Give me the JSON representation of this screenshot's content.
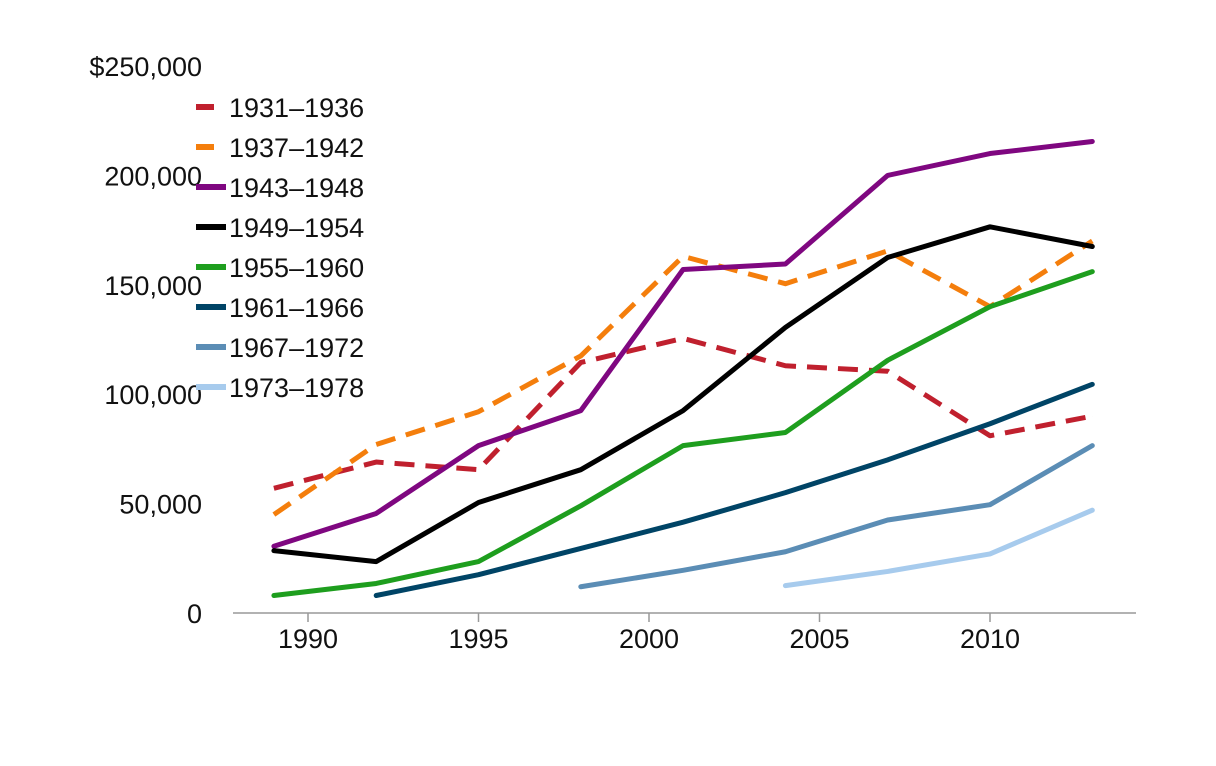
{
  "chart_data": {
    "type": "line",
    "title": "",
    "xlabel": "",
    "ylabel": "",
    "xlim": [
      1988,
      2014.5
    ],
    "ylim": [
      0,
      250000
    ],
    "grid": false,
    "legend_placement": "top-left",
    "x_ticks": [
      1990,
      1995,
      2000,
      2005,
      2010
    ],
    "x_tick_labels": [
      "1990",
      "1995",
      "2000",
      "2005",
      "2010"
    ],
    "y_ticks": [
      0,
      50000,
      100000,
      150000,
      200000,
      250000
    ],
    "y_tick_labels": [
      "0",
      "50,000",
      "100,000",
      "150,000",
      "200,000",
      "$250,000"
    ],
    "x": [
      1989,
      1992,
      1995,
      1998,
      2001,
      2004,
      2007,
      2010,
      2013
    ],
    "series": [
      {
        "name": "1931–1936",
        "color": "#c0202e",
        "dashed": true,
        "values": [
          57000,
          69000,
          65500,
          114500,
          125500,
          113000,
          110500,
          81000,
          90000
        ]
      },
      {
        "name": "1937–1942",
        "color": "#f47e0c",
        "dashed": true,
        "values": [
          45000,
          77000,
          92000,
          117500,
          163000,
          150500,
          165500,
          140000,
          170000
        ]
      },
      {
        "name": "1943–1948",
        "color": "#7f0780",
        "dashed": false,
        "values": [
          30500,
          45500,
          76500,
          92500,
          157000,
          159500,
          200000,
          210000,
          215500
        ]
      },
      {
        "name": "1949–1954",
        "color": "#000000",
        "dashed": false,
        "values": [
          28500,
          23500,
          50500,
          65500,
          92500,
          130500,
          162500,
          176500,
          167500
        ]
      },
      {
        "name": "1955–1960",
        "color": "#1e9e1e",
        "dashed": false,
        "values": [
          8000,
          13500,
          23500,
          49000,
          76500,
          82500,
          115500,
          140000,
          156000
        ]
      },
      {
        "name": "1961–1966",
        "color": "#004466",
        "dashed": false,
        "values": [
          null,
          8000,
          17500,
          29500,
          41500,
          55000,
          70000,
          86500,
          104500
        ]
      },
      {
        "name": "1967–1972",
        "color": "#5b8db5",
        "dashed": false,
        "values": [
          null,
          null,
          null,
          12000,
          19500,
          28000,
          42500,
          49500,
          76500
        ]
      },
      {
        "name": "1973–1978",
        "color": "#a7cbed",
        "dashed": false,
        "values": [
          null,
          null,
          null,
          null,
          null,
          12500,
          19000,
          27000,
          47000
        ]
      }
    ]
  }
}
